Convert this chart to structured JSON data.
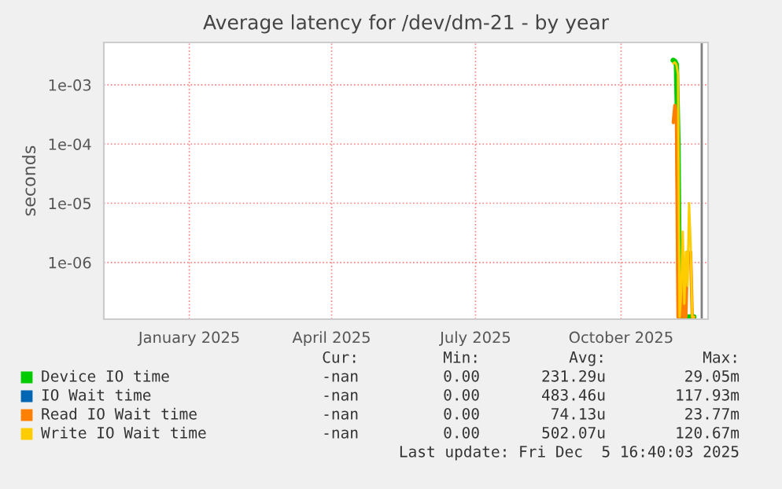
{
  "chart_data": {
    "type": "line",
    "title": "Average latency for /dev/dm-21 - by year",
    "ylabel": "seconds",
    "log": "y",
    "grid": true,
    "legend": "bottom",
    "x": [
      "2025-11-03",
      "2025-11-04",
      "2025-11-05",
      "2025-11-06",
      "2025-11-07",
      "2025-11-08",
      "2025-11-09",
      "2025-11-10",
      "2025-11-11",
      "2025-11-12",
      "2025-11-13",
      "2025-11-14",
      "2025-11-15",
      "2025-11-16"
    ],
    "series": [
      {
        "name": "Device IO time",
        "color": "#00cc00",
        "values": [
          0.0026,
          0.0025,
          0.0022,
          0.0001,
          1.2e-07,
          1.2e-07,
          1.2e-07,
          1.2e-07,
          1.2e-07,
          1.2e-07,
          1.2e-07,
          1.2e-07,
          1.2e-07,
          1.2e-07
        ]
      },
      {
        "name": "IO Wait time",
        "color": "#0066b3",
        "values": [
          null,
          null,
          null,
          null,
          null,
          null,
          null,
          null,
          null,
          null,
          null,
          null,
          null,
          null
        ]
      },
      {
        "name": "Read IO Wait time",
        "color": "#ff8000",
        "values": [
          0.00023,
          0.00045,
          0.0003,
          1.2e-07,
          1.2e-07,
          1.2e-07,
          5e-07,
          1.2e-07,
          1.2e-07,
          1.5e-06,
          1.2e-06,
          1.5e-06,
          1.2e-07,
          1.2e-07
        ]
      },
      {
        "name": "Write IO Wait time",
        "color": "#ffcc00",
        "values": [
          0.0023,
          0.0024,
          0.0022,
          0.0015,
          1.2e-07,
          3e-07,
          3.3e-06,
          2e-07,
          1.5e-06,
          4e-07,
          1e-05,
          2e-06,
          1.2e-07,
          1.2e-07
        ]
      }
    ],
    "xlim": [
      "2024-11-08",
      "2025-11-25"
    ],
    "xticks": [
      {
        "value": "2025-01-01",
        "label": "January 2025"
      },
      {
        "value": "2025-04-01",
        "label": "April 2025"
      },
      {
        "value": "2025-07-01",
        "label": "July 2025"
      },
      {
        "value": "2025-10-01",
        "label": "October 2025"
      }
    ],
    "ylim": [
      1.1e-07,
      0.0052
    ],
    "yticks": [
      {
        "value": 1e-06,
        "label": "1e-06"
      },
      {
        "value": 1e-05,
        "label": "1e-05"
      },
      {
        "value": 0.0001,
        "label": "1e-04"
      },
      {
        "value": 0.001,
        "label": "1e-03"
      }
    ],
    "ref_lines": [
      {
        "axis": "x",
        "value": "2025-11-21",
        "color": "#808080"
      }
    ],
    "annotations": [
      "Cur:",
      "Min:",
      "Avg:",
      "Max:",
      "-nan",
      "0.00",
      "231.29u",
      "29.05m",
      "-nan",
      "0.00",
      "483.46u",
      "117.93m",
      "-nan",
      "0.00",
      "74.13u",
      "23.77m",
      "-nan",
      "0.00",
      "502.07u",
      "120.67m",
      "Last update: Fri Dec  5 16:40:03 2025"
    ]
  }
}
